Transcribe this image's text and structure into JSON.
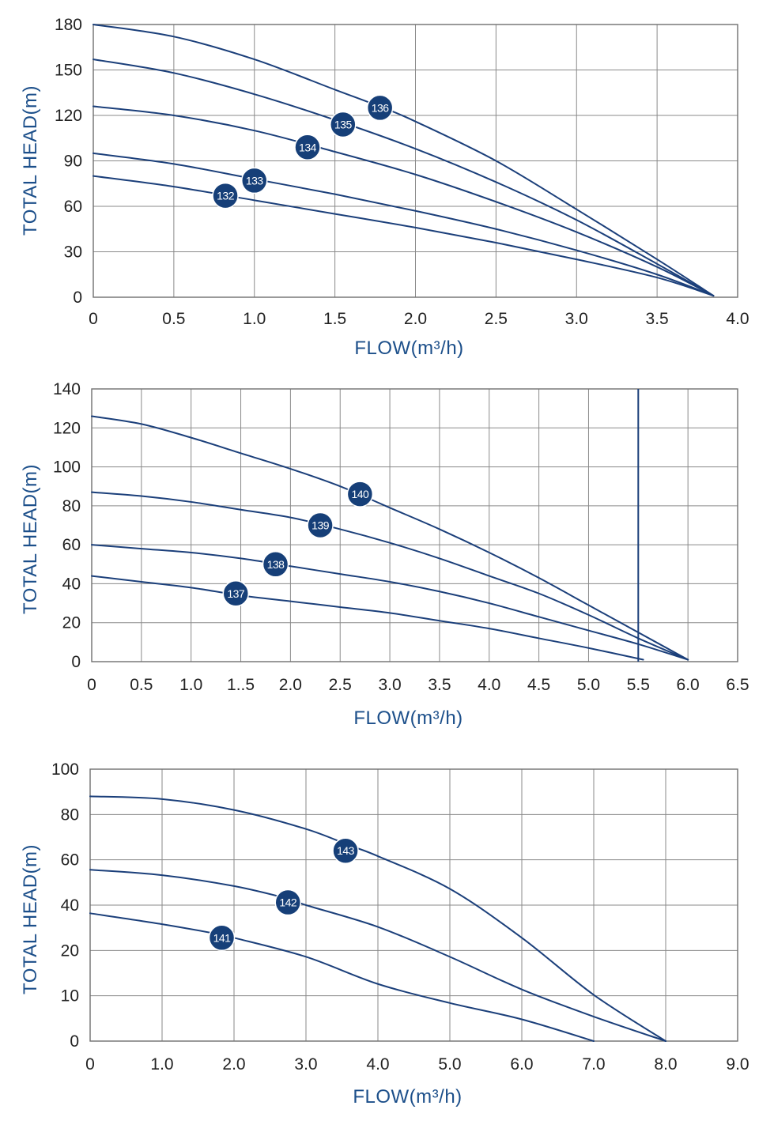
{
  "colors": {
    "curve": "#1b3f7a",
    "badge": "#163f78",
    "axis_title": "#1c4f8a",
    "grid": "#8a8a8a",
    "tick_text": "#222222"
  },
  "chart_data": [
    {
      "type": "line",
      "xlabel": "FLOW(m³/h)",
      "ylabel": "TOTAL HEAD(m)",
      "xlim": [
        0,
        4.0
      ],
      "ylim": [
        0,
        180
      ],
      "x_ticks": [
        "0",
        "0.5",
        "1.0",
        "1.5",
        "2.0",
        "2.5",
        "3.0",
        "3.5",
        "4.0"
      ],
      "y_ticks": [
        "0",
        "30",
        "60",
        "90",
        "120",
        "150",
        "180"
      ],
      "grid": true,
      "series": [
        {
          "name": "136",
          "x": [
            0,
            0.5,
            1.0,
            1.5,
            1.8,
            2.0,
            2.5,
            3.0,
            3.5,
            3.85
          ],
          "y": [
            180,
            172,
            157,
            137,
            125,
            116,
            90,
            58,
            25,
            1
          ],
          "label_at": [
            1.78,
            125
          ]
        },
        {
          "name": "135",
          "x": [
            0,
            0.5,
            1.0,
            1.5,
            2.0,
            2.5,
            3.0,
            3.5,
            3.85
          ],
          "y": [
            157,
            148,
            134,
            117,
            98,
            76,
            51,
            22,
            1
          ],
          "label_at": [
            1.55,
            114
          ]
        },
        {
          "name": "134",
          "x": [
            0,
            0.5,
            1.0,
            1.5,
            2.0,
            2.5,
            3.0,
            3.5,
            3.85
          ],
          "y": [
            126,
            120,
            110,
            96,
            81,
            63,
            43,
            20,
            1
          ],
          "label_at": [
            1.33,
            99
          ]
        },
        {
          "name": "133",
          "x": [
            0,
            0.5,
            1.0,
            1.5,
            2.0,
            2.5,
            3.0,
            3.5,
            3.85
          ],
          "y": [
            95,
            88,
            78,
            68,
            57,
            45,
            31,
            15,
            1
          ],
          "label_at": [
            1.0,
            77
          ]
        },
        {
          "name": "132",
          "x": [
            0,
            0.5,
            1.0,
            1.5,
            2.0,
            2.5,
            3.0,
            3.5,
            3.85
          ],
          "y": [
            80,
            73,
            64,
            55,
            46,
            36,
            25,
            13,
            1
          ],
          "label_at": [
            0.82,
            67
          ]
        }
      ]
    },
    {
      "type": "line",
      "xlabel": "FLOW(m³/h)",
      "ylabel": "TOTAL HEAD(m)",
      "xlim": [
        0,
        6.5
      ],
      "ylim": [
        0,
        140
      ],
      "x_ticks": [
        "0",
        "0.5",
        "1.0",
        "1..5",
        "2.0",
        "2.5",
        "3.0",
        "3.5",
        "4.0",
        "4.5",
        "5.0",
        "5.5",
        "6.0",
        "6.5"
      ],
      "y_ticks": [
        "0",
        "20",
        "40",
        "60",
        "80",
        "100",
        "120",
        "140"
      ],
      "grid": true,
      "vertical_line_x": 5.5,
      "series": [
        {
          "name": "140",
          "x": [
            0,
            0.5,
            1.0,
            1.5,
            2.0,
            2.5,
            3.0,
            3.5,
            4.0,
            4.5,
            5.0,
            5.5,
            6.0
          ],
          "y": [
            126,
            122,
            115,
            107,
            99,
            90,
            79,
            68,
            56,
            43,
            29,
            15,
            1
          ],
          "label_at": [
            2.7,
            86
          ]
        },
        {
          "name": "139",
          "x": [
            0,
            0.5,
            1.0,
            1.5,
            2.0,
            2.5,
            3.0,
            3.5,
            4.0,
            4.5,
            5.0,
            5.5,
            6.0
          ],
          "y": [
            87,
            85,
            82,
            78,
            74,
            68,
            61,
            53,
            44,
            35,
            24,
            12,
            1
          ],
          "label_at": [
            2.3,
            70
          ]
        },
        {
          "name": "138",
          "x": [
            0,
            0.5,
            1.0,
            1.5,
            2.0,
            2.5,
            3.0,
            3.5,
            4.0,
            4.5,
            5.0,
            5.5,
            6.0
          ],
          "y": [
            60,
            58,
            56,
            53,
            49,
            45,
            41,
            36,
            30,
            23,
            16,
            9,
            1
          ],
          "label_at": [
            1.85,
            50
          ]
        },
        {
          "name": "137",
          "x": [
            0,
            0.5,
            1.0,
            1.5,
            2.0,
            2.5,
            3.0,
            3.5,
            4.0,
            4.5,
            5.0,
            5.55
          ],
          "y": [
            44,
            41,
            38,
            34,
            31,
            28,
            25,
            21,
            17,
            12,
            7,
            1
          ],
          "label_at": [
            1.45,
            35
          ]
        }
      ]
    },
    {
      "type": "line",
      "xlabel": "FLOW(m³/h)",
      "ylabel": "TOTAL HEAD(m)",
      "xlim": [
        0,
        9.0
      ],
      "ylim": [
        0,
        100
      ],
      "x_ticks": [
        "0",
        "1.0",
        "2.0",
        "3.0",
        "4.0",
        "5.0",
        "6.0",
        "7.0",
        "8.0",
        "9.0"
      ],
      "y_ticks": [
        "0",
        "10",
        "20",
        "40",
        "60",
        "80",
        "100"
      ],
      "grid": true,
      "series": [
        {
          "name": "143",
          "x": [
            0,
            1,
            2,
            3,
            3.6,
            4,
            5,
            6,
            7,
            8
          ],
          "y": [
            90,
            89,
            85,
            78,
            72,
            68,
            56,
            38,
            17,
            0
          ],
          "label_at": [
            3.55,
            70
          ]
        },
        {
          "name": "142",
          "x": [
            0,
            1,
            2,
            2.8,
            3,
            4,
            5,
            6,
            7,
            8
          ],
          "y": [
            63,
            61,
            57,
            52,
            50,
            42,
            31,
            19,
            9,
            0
          ],
          "label_at": [
            2.75,
            51
          ]
        },
        {
          "name": "141",
          "x": [
            0,
            1,
            1.85,
            2,
            3,
            4,
            5,
            6,
            7
          ],
          "y": [
            47,
            43,
            39,
            38,
            31,
            21,
            14,
            8,
            0
          ],
          "label_at": [
            1.83,
            38
          ]
        }
      ]
    }
  ]
}
